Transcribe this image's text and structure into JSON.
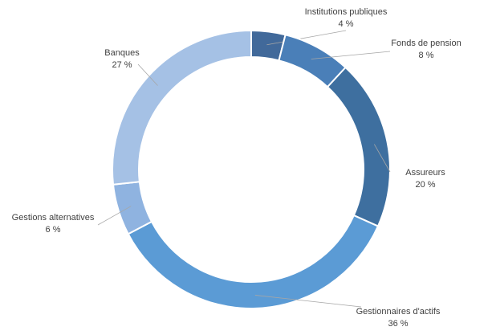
{
  "chart_data": {
    "type": "pie",
    "variant": "donut",
    "title": "",
    "categories": [
      "Institutions publiques",
      "Fonds de pension",
      "Assureurs",
      "Gestionnaires d'actifs",
      "Gestions alternatives",
      "Banques"
    ],
    "values": [
      4,
      8,
      20,
      36,
      6,
      27
    ],
    "value_labels": [
      "4 %",
      "8 %",
      "20 %",
      "36 %",
      "6 %",
      "27 %"
    ],
    "colors": [
      "#41699a",
      "#4a7fb8",
      "#3e6f9f",
      "#5b9bd5",
      "#8fb3e0",
      "#a5c1e5"
    ],
    "legend": "none"
  }
}
